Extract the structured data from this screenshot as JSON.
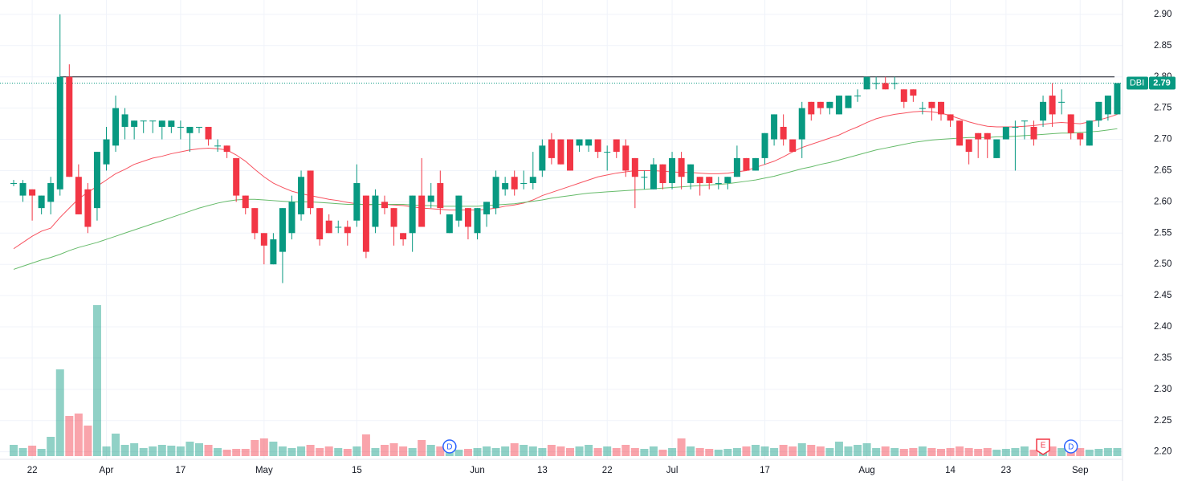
{
  "chart_data": {
    "type": "candlestick",
    "categories": [
      null,
      null,
      "22",
      null,
      null,
      null,
      null,
      null,
      null,
      null,
      "Apr",
      null,
      null,
      null,
      null,
      null,
      null,
      null,
      "17",
      null,
      null,
      null,
      null,
      null,
      null,
      null,
      null,
      "May",
      null,
      null,
      null,
      null,
      null,
      null,
      null,
      null,
      null,
      "15",
      null,
      null,
      null,
      null,
      null,
      null,
      null,
      null,
      null,
      null,
      null,
      null,
      "Jun",
      null,
      null,
      null,
      null,
      null,
      null,
      "13",
      null,
      null,
      null,
      null,
      null,
      null,
      "22",
      null,
      null,
      null,
      null,
      null,
      null,
      "Jul",
      null,
      null,
      null,
      null,
      null,
      null,
      null,
      null,
      null,
      "17",
      null,
      null,
      null,
      null,
      null,
      null,
      null,
      null,
      null,
      null,
      "Aug",
      null,
      null,
      null,
      null,
      null,
      null,
      null,
      null,
      "14",
      null,
      null,
      null,
      null,
      null,
      "23",
      null,
      null,
      null,
      null,
      null,
      null,
      null,
      "Sep",
      null,
      null,
      null,
      null
    ],
    "open": [
      2.63,
      2.61,
      2.62,
      2.59,
      2.6,
      2.62,
      2.8,
      2.64,
      2.62,
      2.59,
      2.66,
      2.69,
      2.72,
      2.72,
      2.73,
      2.73,
      2.72,
      2.72,
      2.72,
      2.71,
      2.72,
      2.72,
      2.69,
      2.69,
      2.67,
      2.61,
      2.59,
      2.55,
      2.5,
      2.52,
      2.55,
      2.58,
      2.65,
      2.59,
      2.57,
      2.56,
      2.56,
      2.57,
      2.61,
      2.56,
      2.6,
      2.59,
      2.55,
      2.55,
      2.61,
      2.6,
      2.63,
      2.55,
      2.57,
      2.59,
      2.55,
      2.58,
      2.59,
      2.62,
      2.64,
      2.63,
      2.63,
      2.65,
      2.7,
      2.7,
      2.7,
      2.69,
      2.69,
      2.7,
      2.68,
      2.7,
      2.69,
      2.67,
      2.64,
      2.62,
      2.66,
      2.63,
      2.67,
      2.63,
      2.64,
      2.64,
      2.63,
      2.63,
      2.64,
      2.67,
      2.65,
      2.67,
      2.7,
      2.72,
      2.7,
      2.7,
      2.76,
      2.76,
      2.75,
      2.74,
      2.75,
      2.77,
      2.78,
      2.79,
      2.79,
      2.79,
      2.78,
      2.78,
      2.75,
      2.76,
      2.76,
      2.74,
      2.73,
      2.7,
      2.71,
      2.71,
      2.67,
      2.7,
      2.72,
      2.73,
      2.72,
      2.73,
      2.77,
      2.76,
      2.74,
      2.71,
      2.69,
      2.73,
      2.74,
      2.74
    ],
    "high": [
      2.635,
      2.635,
      2.62,
      2.61,
      2.64,
      2.9,
      2.82,
      2.66,
      2.63,
      2.68,
      2.72,
      2.77,
      2.75,
      2.73,
      2.73,
      2.73,
      2.73,
      2.73,
      2.73,
      2.72,
      2.72,
      2.72,
      2.7,
      2.69,
      2.67,
      2.61,
      2.59,
      2.55,
      2.55,
      2.59,
      2.61,
      2.65,
      2.65,
      2.59,
      2.58,
      2.57,
      2.57,
      2.66,
      2.61,
      2.62,
      2.61,
      2.59,
      2.55,
      2.61,
      2.67,
      2.63,
      2.65,
      2.58,
      2.61,
      2.59,
      2.59,
      2.6,
      2.65,
      2.64,
      2.65,
      2.65,
      2.68,
      2.7,
      2.71,
      2.7,
      2.7,
      2.7,
      2.7,
      2.7,
      2.69,
      2.7,
      2.7,
      2.67,
      2.65,
      2.67,
      2.66,
      2.68,
      2.68,
      2.66,
      2.64,
      2.64,
      2.64,
      2.64,
      2.69,
      2.67,
      2.67,
      2.71,
      2.74,
      2.74,
      2.7,
      2.76,
      2.76,
      2.76,
      2.76,
      2.77,
      2.77,
      2.78,
      2.8,
      2.8,
      2.8,
      2.8,
      2.78,
      2.78,
      2.76,
      2.76,
      2.76,
      2.74,
      2.73,
      2.7,
      2.71,
      2.71,
      2.7,
      2.72,
      2.73,
      2.73,
      2.73,
      2.77,
      2.79,
      2.78,
      2.74,
      2.71,
      2.73,
      2.76,
      2.77,
      2.79
    ],
    "low": [
      2.625,
      2.6,
      2.57,
      2.58,
      2.58,
      2.61,
      2.64,
      2.58,
      2.55,
      2.57,
      2.65,
      2.68,
      2.7,
      2.7,
      2.71,
      2.71,
      2.7,
      2.71,
      2.7,
      2.68,
      2.71,
      2.69,
      2.68,
      2.67,
      2.6,
      2.58,
      2.54,
      2.5,
      2.5,
      2.47,
      2.54,
      2.57,
      2.58,
      2.53,
      2.55,
      2.55,
      2.53,
      2.56,
      2.51,
      2.55,
      2.58,
      2.53,
      2.53,
      2.52,
      2.56,
      2.59,
      2.58,
      2.55,
      2.56,
      2.54,
      2.54,
      2.56,
      2.58,
      2.61,
      2.61,
      2.62,
      2.62,
      2.64,
      2.66,
      2.66,
      2.65,
      2.68,
      2.68,
      2.67,
      2.65,
      2.67,
      2.64,
      2.59,
      2.62,
      2.62,
      2.62,
      2.62,
      2.62,
      2.62,
      2.61,
      2.62,
      2.62,
      2.62,
      2.64,
      2.65,
      2.65,
      2.66,
      2.69,
      2.69,
      2.68,
      2.67,
      2.73,
      2.74,
      2.74,
      2.74,
      2.75,
      2.76,
      2.78,
      2.78,
      2.78,
      2.78,
      2.75,
      2.76,
      2.74,
      2.73,
      2.73,
      2.72,
      2.69,
      2.66,
      2.67,
      2.67,
      2.67,
      2.7,
      2.65,
      2.7,
      2.69,
      2.72,
      2.72,
      2.74,
      2.7,
      2.69,
      2.69,
      2.72,
      2.73,
      2.74
    ],
    "close": [
      2.63,
      2.63,
      2.61,
      2.61,
      2.63,
      2.8,
      2.64,
      2.58,
      2.56,
      2.68,
      2.7,
      2.75,
      2.74,
      2.73,
      2.73,
      2.73,
      2.73,
      2.73,
      2.72,
      2.72,
      2.72,
      2.7,
      2.69,
      2.68,
      2.61,
      2.59,
      2.55,
      2.53,
      2.54,
      2.59,
      2.6,
      2.64,
      2.59,
      2.54,
      2.55,
      2.56,
      2.55,
      2.63,
      2.52,
      2.61,
      2.59,
      2.56,
      2.54,
      2.61,
      2.56,
      2.61,
      2.59,
      2.58,
      2.61,
      2.56,
      2.59,
      2.6,
      2.64,
      2.63,
      2.62,
      2.63,
      2.64,
      2.69,
      2.67,
      2.66,
      2.65,
      2.7,
      2.7,
      2.68,
      2.68,
      2.68,
      2.65,
      2.64,
      2.64,
      2.66,
      2.63,
      2.67,
      2.64,
      2.66,
      2.63,
      2.63,
      2.63,
      2.64,
      2.67,
      2.65,
      2.67,
      2.71,
      2.74,
      2.7,
      2.68,
      2.75,
      2.74,
      2.75,
      2.76,
      2.77,
      2.77,
      2.77,
      2.8,
      2.79,
      2.78,
      2.79,
      2.76,
      2.77,
      2.75,
      2.75,
      2.74,
      2.73,
      2.69,
      2.68,
      2.7,
      2.7,
      2.7,
      2.72,
      2.72,
      2.73,
      2.7,
      2.76,
      2.74,
      2.76,
      2.71,
      2.7,
      2.73,
      2.76,
      2.77,
      2.79
    ],
    "volume": [
      14,
      10,
      13,
      9,
      24,
      108,
      50,
      53,
      38,
      188,
      12,
      28,
      14,
      16,
      10,
      12,
      14,
      13,
      12,
      18,
      16,
      14,
      10,
      8,
      9,
      9,
      20,
      22,
      18,
      12,
      10,
      12,
      14,
      10,
      12,
      10,
      9,
      12,
      27,
      10,
      14,
      16,
      12,
      10,
      20,
      14,
      12,
      10,
      8,
      9,
      10,
      12,
      10,
      12,
      16,
      14,
      12,
      10,
      14,
      12,
      10,
      12,
      14,
      10,
      12,
      10,
      14,
      10,
      9,
      12,
      8,
      10,
      22,
      12,
      10,
      9,
      8,
      9,
      10,
      12,
      14,
      12,
      10,
      14,
      12,
      16,
      14,
      12,
      10,
      18,
      12,
      14,
      16,
      10,
      12,
      10,
      9,
      10,
      12,
      10,
      9,
      10,
      12,
      10,
      9,
      10,
      8,
      9,
      10,
      12,
      8,
      10,
      12,
      10,
      9,
      10,
      8,
      9,
      10,
      10
    ],
    "moving_averages": [
      {
        "color": "#f7525f",
        "values": [
          2.525,
          2.535,
          2.545,
          2.553,
          2.558,
          2.575,
          2.59,
          2.605,
          2.615,
          2.625,
          2.635,
          2.645,
          2.652,
          2.66,
          2.665,
          2.67,
          2.673,
          2.677,
          2.68,
          2.683,
          2.685,
          2.686,
          2.685,
          2.683,
          2.675,
          2.665,
          2.652,
          2.64,
          2.63,
          2.623,
          2.617,
          2.613,
          2.61,
          2.607,
          2.604,
          2.602,
          2.599,
          2.597,
          2.595,
          2.596,
          2.596,
          2.595,
          2.594,
          2.592,
          2.59,
          2.589,
          2.588,
          2.587,
          2.587,
          2.587,
          2.587,
          2.588,
          2.59,
          2.593,
          2.595,
          2.598,
          2.603,
          2.61,
          2.615,
          2.62,
          2.625,
          2.63,
          2.635,
          2.64,
          2.643,
          2.646,
          2.648,
          2.65,
          2.65,
          2.65,
          2.649,
          2.648,
          2.647,
          2.647,
          2.646,
          2.645,
          2.645,
          2.646,
          2.648,
          2.65,
          2.655,
          2.66,
          2.665,
          2.672,
          2.68,
          2.687,
          2.692,
          2.697,
          2.702,
          2.707,
          2.714,
          2.72,
          2.727,
          2.733,
          2.737,
          2.74,
          2.742,
          2.744,
          2.745,
          2.744,
          2.742,
          2.738,
          2.733,
          2.728,
          2.724,
          2.721,
          2.72,
          2.72,
          2.72,
          2.721,
          2.722,
          2.724,
          2.726,
          2.727,
          2.726,
          2.725,
          2.728,
          2.731,
          2.735,
          2.74
        ]
      },
      {
        "color": "#66bb6a",
        "values": [
          2.492,
          2.497,
          2.502,
          2.507,
          2.511,
          2.516,
          2.522,
          2.527,
          2.531,
          2.535,
          2.54,
          2.545,
          2.55,
          2.555,
          2.56,
          2.565,
          2.57,
          2.575,
          2.58,
          2.585,
          2.59,
          2.594,
          2.598,
          2.601,
          2.603,
          2.604,
          2.604,
          2.603,
          2.602,
          2.601,
          2.6,
          2.6,
          2.6,
          2.599,
          2.598,
          2.597,
          2.596,
          2.596,
          2.596,
          2.596,
          2.596,
          2.596,
          2.596,
          2.595,
          2.594,
          2.594,
          2.593,
          2.593,
          2.593,
          2.593,
          2.593,
          2.594,
          2.595,
          2.596,
          2.597,
          2.599,
          2.601,
          2.603,
          2.606,
          2.608,
          2.61,
          2.612,
          2.614,
          2.615,
          2.616,
          2.617,
          2.618,
          2.619,
          2.62,
          2.621,
          2.622,
          2.623,
          2.624,
          2.625,
          2.626,
          2.627,
          2.628,
          2.629,
          2.631,
          2.633,
          2.635,
          2.638,
          2.641,
          2.645,
          2.649,
          2.653,
          2.656,
          2.66,
          2.663,
          2.667,
          2.671,
          2.675,
          2.679,
          2.683,
          2.686,
          2.689,
          2.692,
          2.695,
          2.697,
          2.699,
          2.7,
          2.701,
          2.702,
          2.703,
          2.703,
          2.703,
          2.704,
          2.704,
          2.705,
          2.706,
          2.707,
          2.708,
          2.709,
          2.71,
          2.71,
          2.711,
          2.712,
          2.713,
          2.715,
          2.717
        ]
      }
    ],
    "up_color": "#089981",
    "down_color": "#f23645",
    "events": [
      {
        "label": "D",
        "index": 47
      },
      {
        "label": "E",
        "index": 111
      },
      {
        "label": "D",
        "index": 114
      }
    ],
    "horizontal_line": 2.8,
    "last_price": {
      "symbol": "DBI",
      "value": 2.79
    },
    "ylim": [
      2.188,
      2.923
    ],
    "yticks": [
      {
        "value": 2.2,
        "label": "2.20"
      },
      2.25,
      {
        "value": 2.3,
        "label": "2.30"
      },
      2.35,
      {
        "value": 2.4,
        "label": "2.40"
      },
      2.45,
      {
        "value": 2.5,
        "label": "2.50"
      },
      2.55,
      {
        "value": 2.6,
        "label": "2.60"
      },
      2.65,
      {
        "value": 2.7,
        "label": "2.70"
      },
      2.75,
      {
        "value": 2.8,
        "label": "2.80"
      },
      2.85,
      {
        "value": 2.9,
        "label": "2.90"
      }
    ],
    "grid": true
  }
}
